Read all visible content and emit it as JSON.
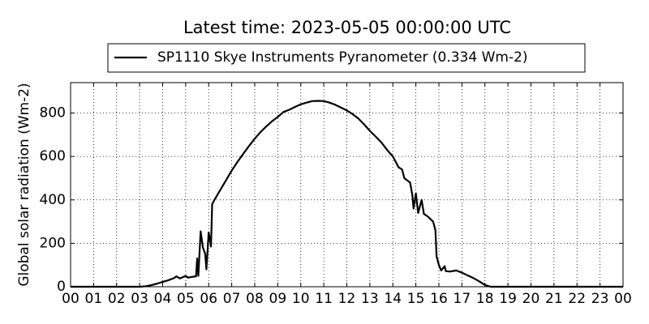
{
  "chart_data": {
    "type": "line",
    "title": "Latest time: 2023-05-05 00:00:00 UTC",
    "y_label": "Global solar radiation (Wm-2)",
    "x": [
      0,
      1,
      2,
      3,
      3.25,
      3.5,
      3.75,
      4,
      4.25,
      4.5,
      4.6,
      4.75,
      5,
      5.1,
      5.25,
      5.45,
      5.5,
      5.55,
      5.65,
      5.75,
      5.85,
      5.9,
      6,
      6.1,
      6.15,
      6.25,
      6.5,
      6.75,
      7,
      7.25,
      7.5,
      7.75,
      8,
      8.25,
      8.5,
      8.75,
      9,
      9.25,
      9.5,
      9.75,
      10,
      10.25,
      10.5,
      10.75,
      11,
      11.25,
      11.5,
      11.75,
      12,
      12.25,
      12.5,
      12.75,
      13,
      13.25,
      13.5,
      13.75,
      14,
      14.25,
      14.4,
      14.5,
      14.75,
      14.85,
      14.9,
      15,
      15.1,
      15.25,
      15.35,
      15.5,
      15.75,
      15.85,
      15.9,
      16,
      16.1,
      16.25,
      16.3,
      16.5,
      16.75,
      17,
      17.25,
      17.5,
      17.75,
      18,
      18.25,
      19,
      20,
      21,
      22,
      23,
      24
    ],
    "series": [
      {
        "name": "SP1110 Skye Instruments Pyranometer (0.334 Wm-2)",
        "color": "#000000",
        "values": [
          0,
          0,
          0,
          0,
          2,
          7,
          14,
          22,
          30,
          40,
          48,
          38,
          50,
          42,
          45,
          48,
          130,
          50,
          255,
          180,
          150,
          80,
          250,
          185,
          380,
          400,
          445,
          490,
          535,
          575,
          612,
          648,
          682,
          712,
          738,
          762,
          782,
          805,
          815,
          828,
          840,
          848,
          855,
          856,
          855,
          848,
          838,
          825,
          812,
          795,
          775,
          748,
          718,
          692,
          665,
          630,
          600,
          550,
          540,
          500,
          480,
          420,
          360,
          430,
          340,
          400,
          335,
          325,
          300,
          260,
          140,
          100,
          75,
          95,
          72,
          70,
          75,
          65,
          52,
          40,
          25,
          8,
          0,
          0,
          0,
          0,
          0,
          0,
          0
        ]
      }
    ],
    "xlim": [
      0,
      24
    ],
    "ylim": [
      0,
      940
    ],
    "xticks": [
      {
        "value": 0,
        "label": "00"
      },
      {
        "value": 1,
        "label": "01"
      },
      {
        "value": 2,
        "label": "02"
      },
      {
        "value": 3,
        "label": "03"
      },
      {
        "value": 4,
        "label": "04"
      },
      {
        "value": 5,
        "label": "05"
      },
      {
        "value": 6,
        "label": "06"
      },
      {
        "value": 7,
        "label": "07"
      },
      {
        "value": 8,
        "label": "08"
      },
      {
        "value": 9,
        "label": "09"
      },
      {
        "value": 10,
        "label": "10"
      },
      {
        "value": 11,
        "label": "11"
      },
      {
        "value": 12,
        "label": "12"
      },
      {
        "value": 13,
        "label": "13"
      },
      {
        "value": 14,
        "label": "14"
      },
      {
        "value": 15,
        "label": "15"
      },
      {
        "value": 16,
        "label": "16"
      },
      {
        "value": 17,
        "label": "17"
      },
      {
        "value": 18,
        "label": "18"
      },
      {
        "value": 19,
        "label": "19"
      },
      {
        "value": 20,
        "label": "20"
      },
      {
        "value": 21,
        "label": "21"
      },
      {
        "value": 22,
        "label": "22"
      },
      {
        "value": 23,
        "label": "23"
      },
      {
        "value": 24,
        "label": "00"
      }
    ],
    "yticks": [
      0,
      200,
      400,
      600,
      800
    ],
    "grid": true,
    "legend": "top"
  }
}
